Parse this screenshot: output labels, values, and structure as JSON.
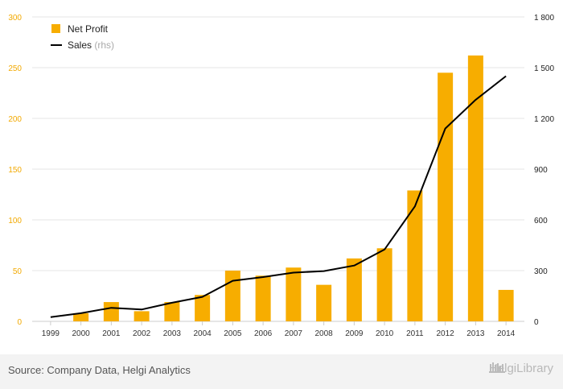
{
  "chart_data": {
    "type": "bar+line",
    "categories": [
      "1999",
      "2000",
      "2001",
      "2002",
      "2003",
      "2004",
      "2005",
      "2006",
      "2007",
      "2008",
      "2009",
      "2010",
      "2011",
      "2012",
      "2013",
      "2014"
    ],
    "series": [
      {
        "name": "Net Profit",
        "type": "bar",
        "axis": "left",
        "color": "#f7ad00",
        "values": [
          0,
          8,
          19,
          10,
          19,
          26,
          50,
          45,
          53,
          36,
          62,
          72,
          129,
          245,
          262,
          31
        ]
      },
      {
        "name": "Sales",
        "name_suffix": "(rhs)",
        "type": "line",
        "axis": "right",
        "color": "#000000",
        "values": [
          25,
          48,
          80,
          70,
          110,
          145,
          240,
          262,
          288,
          297,
          330,
          425,
          680,
          1140,
          1310,
          1450
        ]
      }
    ],
    "left_axis": {
      "ylim": [
        0,
        300
      ],
      "ticks": [
        "0",
        "50",
        "100",
        "150",
        "200",
        "250",
        "300"
      ]
    },
    "right_axis": {
      "ylim": [
        0,
        1800
      ],
      "ticks": [
        "0",
        "300",
        "600",
        "900",
        "1 200",
        "1 500",
        "1 800"
      ]
    },
    "grid": true,
    "legend_position": "top-left"
  },
  "footer": {
    "source": "Source: Company Data, Helgi Analytics",
    "brand": "HelgiLibrary"
  }
}
